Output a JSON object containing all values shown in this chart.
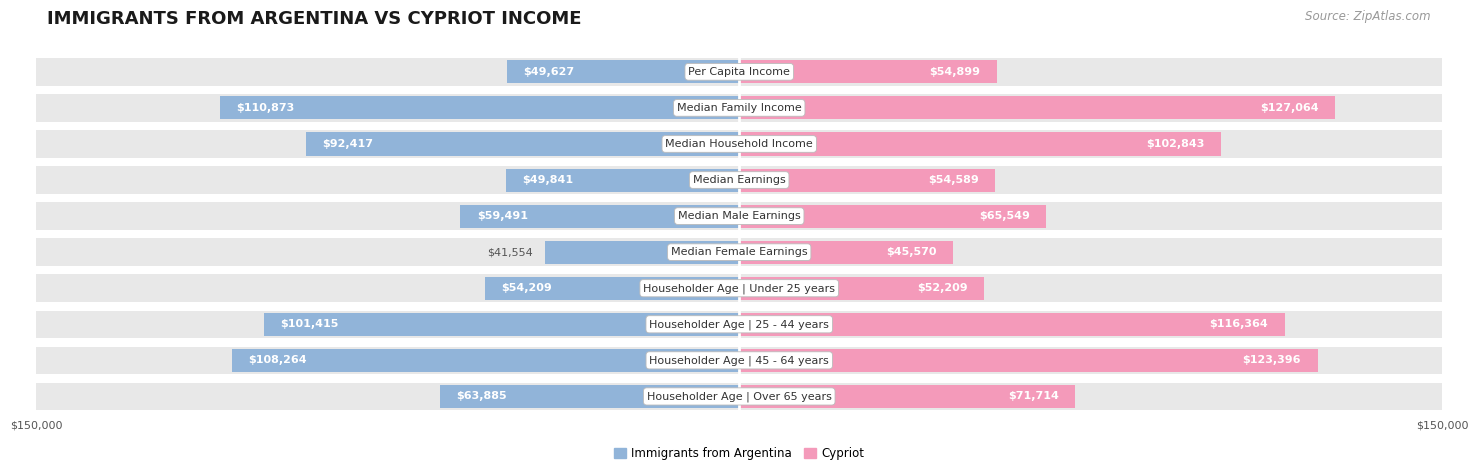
{
  "title": "IMMIGRANTS FROM ARGENTINA VS CYPRIOT INCOME",
  "source": "Source: ZipAtlas.com",
  "categories": [
    "Per Capita Income",
    "Median Family Income",
    "Median Household Income",
    "Median Earnings",
    "Median Male Earnings",
    "Median Female Earnings",
    "Householder Age | Under 25 years",
    "Householder Age | 25 - 44 years",
    "Householder Age | 45 - 64 years",
    "Householder Age | Over 65 years"
  ],
  "argentina_values": [
    49627,
    110873,
    92417,
    49841,
    59491,
    41554,
    54209,
    101415,
    108264,
    63885
  ],
  "cypriot_values": [
    54899,
    127064,
    102843,
    54589,
    65549,
    45570,
    52209,
    116364,
    123396,
    71714
  ],
  "argentina_color": "#91b4d9",
  "cypriot_color": "#f49aba",
  "background_color": "#ffffff",
  "row_bg_color": "#e8e8e8",
  "max_value": 150000,
  "label_argentina": "Immigrants from Argentina",
  "label_cypriot": "Cypriot",
  "title_fontsize": 13,
  "source_fontsize": 8.5,
  "bar_label_fontsize": 8,
  "category_fontsize": 8,
  "axis_label_fontsize": 8,
  "threshold_white": 45000
}
